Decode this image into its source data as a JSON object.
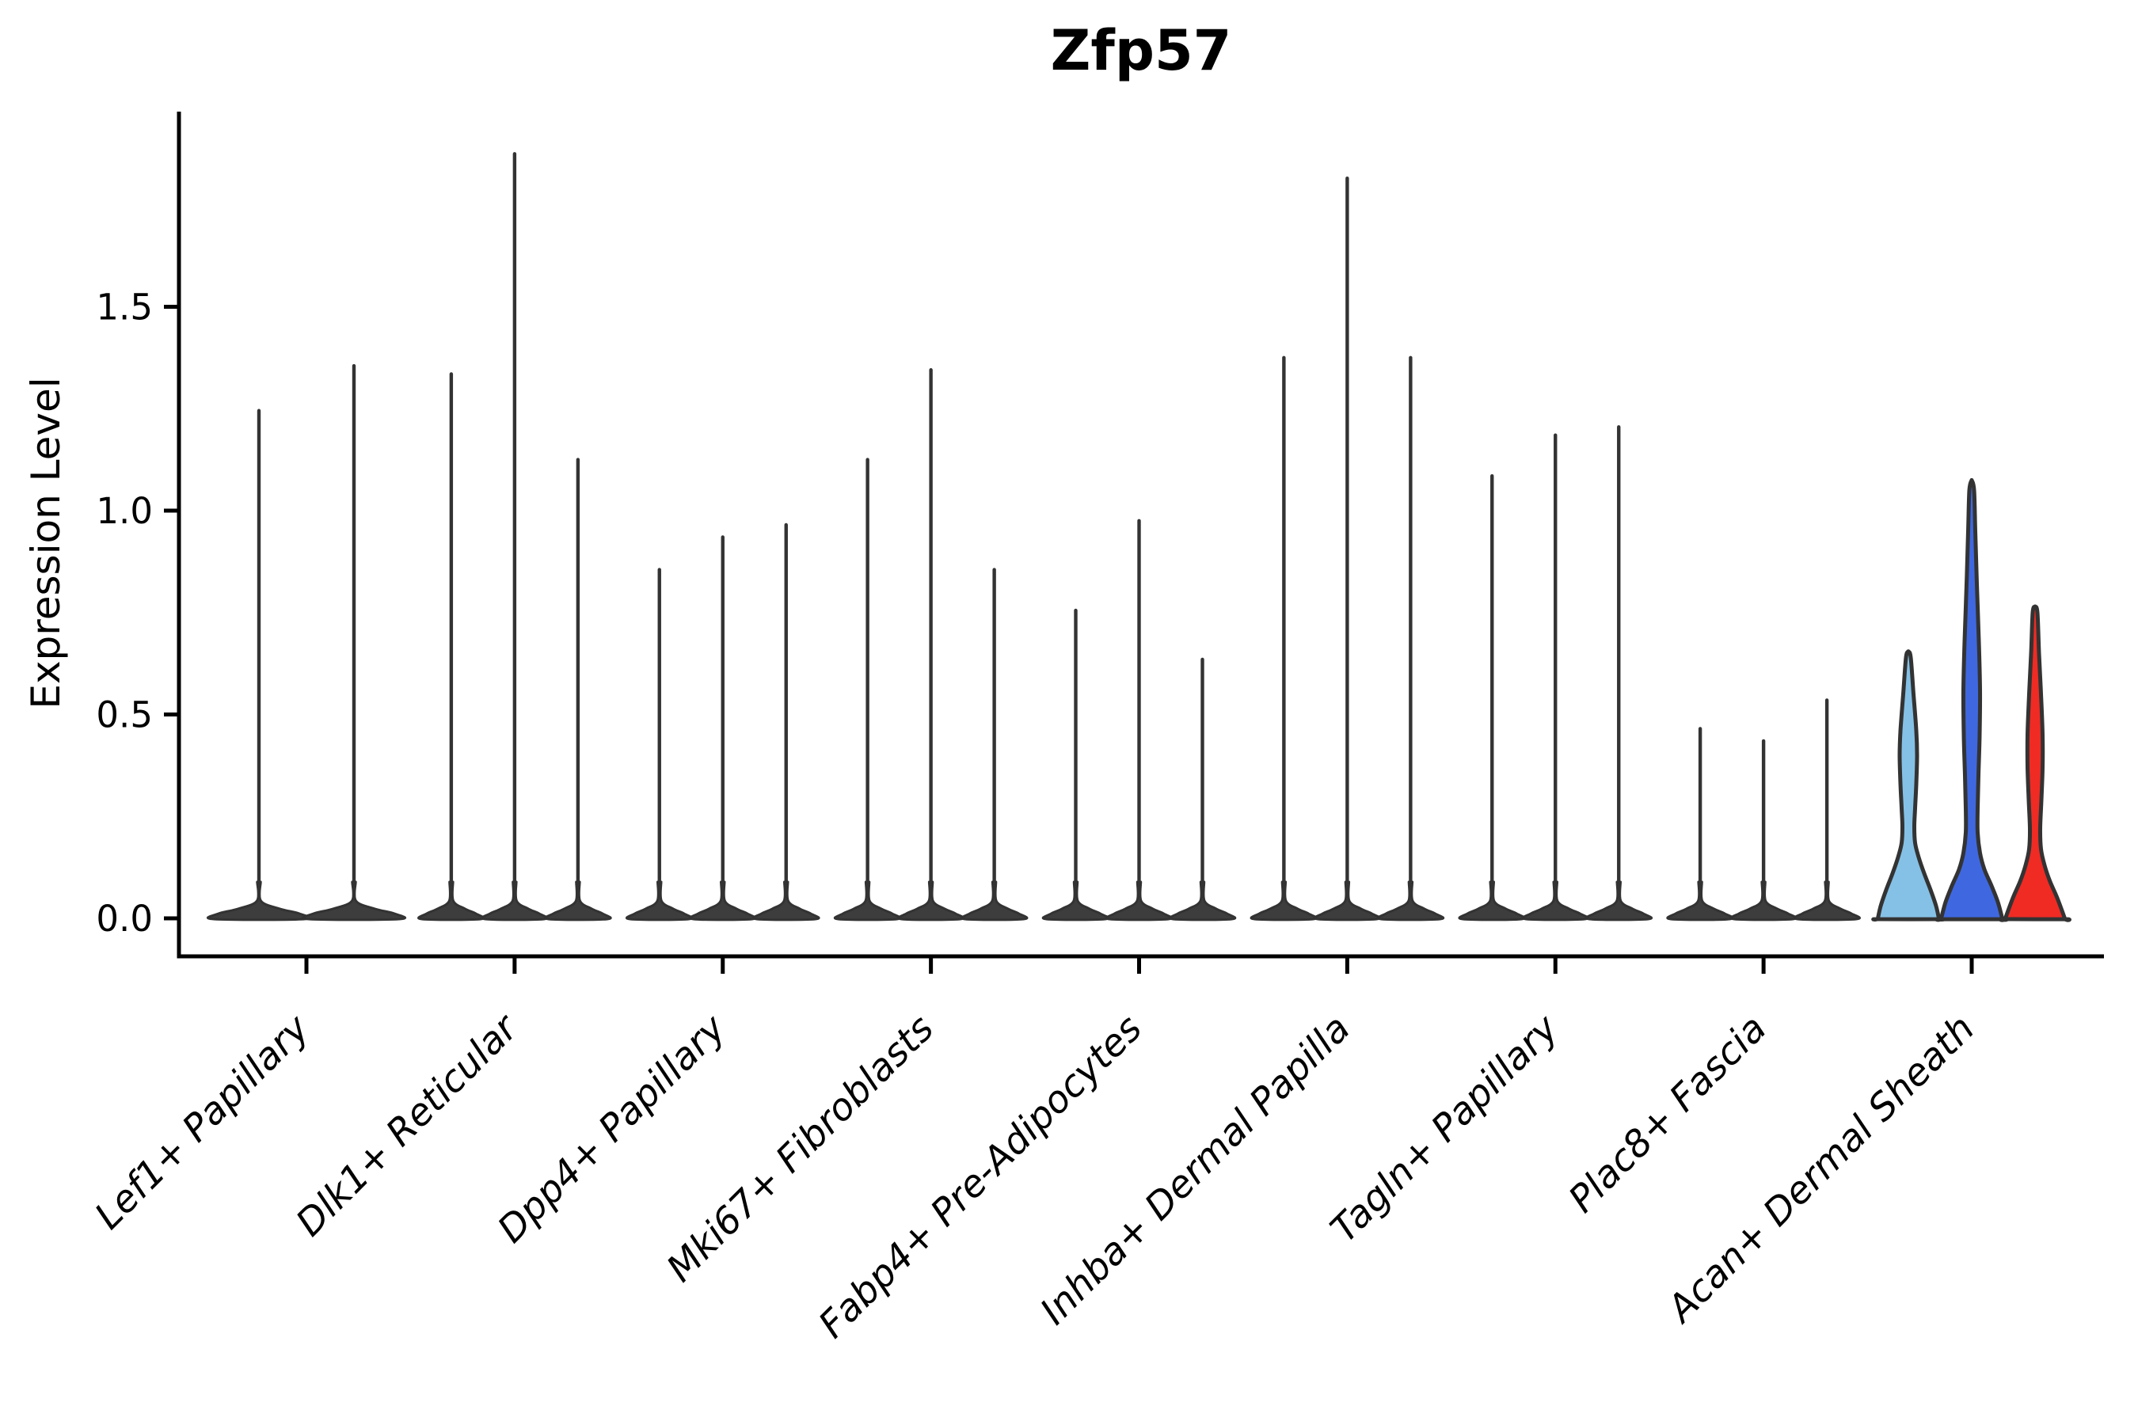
{
  "title": "Zfp57",
  "axes": {
    "ylabel": "Expression Level",
    "ytick_labels": [
      "0.0",
      "0.5",
      "1.0",
      "1.5"
    ]
  },
  "chart_data": {
    "type": "violin",
    "title": "Zfp57",
    "xlabel": "",
    "ylabel": "Expression Level",
    "ylim": [
      0,
      1.95
    ],
    "ytick_values": [
      0.0,
      0.5,
      1.0,
      1.5
    ],
    "ytick_labels": [
      "0.0",
      "0.5",
      "1.0",
      "1.5"
    ],
    "grid": false,
    "legend_position": "none",
    "categories": [
      "Lef1+ Papillary",
      "Dlk1+ Reticular",
      "Dpp4+ Papillary",
      "Mki67+ Fibroblasts",
      "Fabp4+ Pre-Adipocytes",
      "Inhba+ Dermal Papilla",
      "Tagln+ Papillary",
      "Plac8+ Fascia",
      "Acan+ Dermal Sheath"
    ],
    "description": "Violin plot of Zfp57 expression; each category holds one narrow violin per sample, nearly all density at 0 with a thin spike to the max expression. Only Acan+ Dermal Sheath violins are wide enough to show colored fills.",
    "groups": [
      {
        "category": "Lef1+ Papillary",
        "violins": [
          {
            "max": 1.25,
            "color": "dark"
          },
          {
            "max": 1.36,
            "color": "dark"
          }
        ]
      },
      {
        "category": "Dlk1+ Reticular",
        "violins": [
          {
            "max": 1.34,
            "color": "dark"
          },
          {
            "max": 1.88,
            "color": "dark"
          },
          {
            "max": 1.13,
            "color": "dark"
          }
        ]
      },
      {
        "category": "Dpp4+ Papillary",
        "violins": [
          {
            "max": 0.86,
            "color": "dark"
          },
          {
            "max": 0.94,
            "color": "dark"
          },
          {
            "max": 0.97,
            "color": "dark"
          }
        ]
      },
      {
        "category": "Mki67+ Fibroblasts",
        "violins": [
          {
            "max": 1.13,
            "color": "dark"
          },
          {
            "max": 1.35,
            "color": "dark"
          },
          {
            "max": 0.86,
            "color": "dark"
          }
        ]
      },
      {
        "category": "Fabp4+ Pre-Adipocytes",
        "violins": [
          {
            "max": 0.76,
            "color": "dark"
          },
          {
            "max": 0.98,
            "color": "dark"
          },
          {
            "max": 0.64,
            "color": "dark"
          }
        ]
      },
      {
        "category": "Inhba+ Dermal Papilla",
        "violins": [
          {
            "max": 1.38,
            "color": "dark"
          },
          {
            "max": 1.82,
            "color": "dark"
          },
          {
            "max": 1.38,
            "color": "dark"
          }
        ]
      },
      {
        "category": "Tagln+ Papillary",
        "violins": [
          {
            "max": 1.09,
            "color": "dark"
          },
          {
            "max": 1.19,
            "color": "dark"
          },
          {
            "max": 1.21,
            "color": "dark"
          }
        ]
      },
      {
        "category": "Plac8+ Fascia",
        "violins": [
          {
            "max": 0.47,
            "color": "dark"
          },
          {
            "max": 0.44,
            "color": "dark"
          },
          {
            "max": 0.54,
            "color": "dark"
          }
        ]
      },
      {
        "category": "Acan+ Dermal Sheath",
        "violins": [
          {
            "max": 0.66,
            "color": "lightblue",
            "profile": [
              [
                0.655,
                0
              ],
              [
                0.64,
                3
              ],
              [
                0.55,
                6.5
              ],
              [
                0.46,
                10
              ],
              [
                0.4,
                11
              ],
              [
                0.33,
                10
              ],
              [
                0.27,
                8.5
              ],
              [
                0.225,
                7.5
              ],
              [
                0.185,
                8.5
              ],
              [
                0.15,
                13
              ],
              [
                0.11,
                20
              ],
              [
                0.07,
                28
              ],
              [
                0.03,
                35
              ],
              [
                0.0,
                38.5
              ]
            ]
          },
          {
            "max": 1.08,
            "color": "blue",
            "profile": [
              [
                1.075,
                0
              ],
              [
                1.05,
                3
              ],
              [
                0.95,
                4.5
              ],
              [
                0.82,
                6.5
              ],
              [
                0.68,
                9
              ],
              [
                0.56,
                10.5
              ],
              [
                0.45,
                10
              ],
              [
                0.35,
                8.5
              ],
              [
                0.27,
                7.5
              ],
              [
                0.21,
                7.5
              ],
              [
                0.16,
                10.5
              ],
              [
                0.12,
                16
              ],
              [
                0.08,
                25
              ],
              [
                0.04,
                33
              ],
              [
                0.0,
                38.5
              ]
            ]
          },
          {
            "max": 0.77,
            "color": "red",
            "profile": [
              [
                0.765,
                0
              ],
              [
                0.75,
                3
              ],
              [
                0.65,
                5
              ],
              [
                0.55,
                7.5
              ],
              [
                0.45,
                9.5
              ],
              [
                0.37,
                9.5
              ],
              [
                0.29,
                8
              ],
              [
                0.22,
                6.5
              ],
              [
                0.17,
                7.5
              ],
              [
                0.13,
                12
              ],
              [
                0.09,
                19
              ],
              [
                0.05,
                28
              ],
              [
                0.0,
                37.5
              ]
            ]
          }
        ]
      }
    ],
    "colors": {
      "dark": "#3d3d3d",
      "lightblue": "#85C1E6",
      "blue": "#3F68E0",
      "red": "#EF2B24",
      "outline": "#333333",
      "axis": "#000000"
    }
  }
}
